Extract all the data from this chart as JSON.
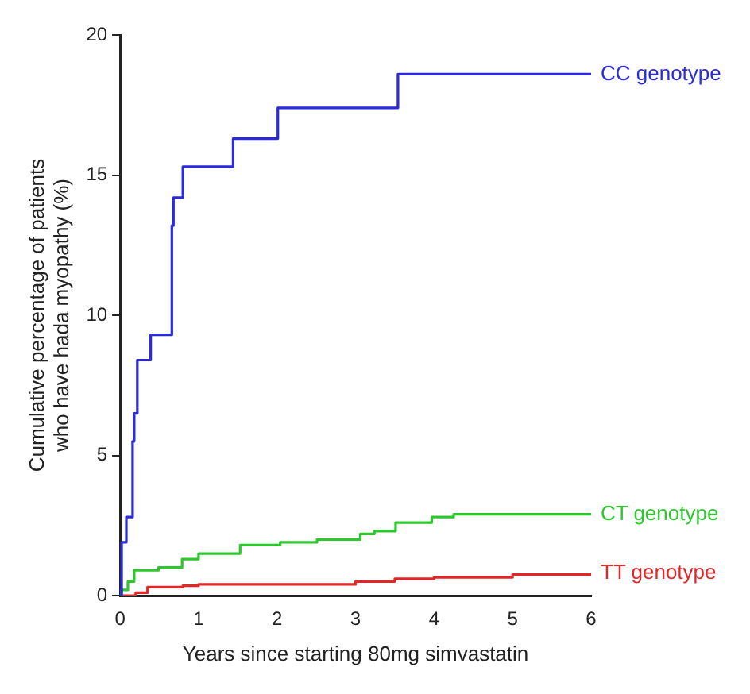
{
  "chart_data": {
    "type": "step",
    "xlabel": "Years since starting 80mg simvastatin",
    "ylabel": "Cumulative percentage of patients who have hada myopathy (%)",
    "xlim": [
      0,
      6
    ],
    "xticks": [
      0,
      1,
      2,
      3,
      4,
      5,
      6
    ],
    "ylim": [
      0,
      20
    ],
    "yticks": [
      0,
      5,
      10,
      15,
      20
    ],
    "grid": false,
    "legend": false,
    "series": [
      {
        "name": "CC genotype",
        "color": "#2b2bdc",
        "x": [
          0,
          0.02,
          0.08,
          0.16,
          0.18,
          0.22,
          0.39,
          0.66,
          0.66,
          0.68,
          0.8,
          1.44,
          2.01,
          3.54,
          6
        ],
        "values": [
          0,
          1.9,
          2.8,
          5.5,
          6.5,
          8.4,
          9.3,
          10.5,
          13.2,
          14.2,
          15.3,
          16.3,
          17.4,
          18.6,
          18.6
        ]
      },
      {
        "name": "CT genotype",
        "color": "#2ec82e",
        "x": [
          0,
          0.02,
          0.1,
          0.18,
          0.49,
          0.79,
          1.0,
          1.53,
          2.04,
          2.51,
          3.06,
          3.24,
          3.51,
          3.97,
          4.25,
          6
        ],
        "values": [
          0,
          0.2,
          0.5,
          0.9,
          1.0,
          1.3,
          1.5,
          1.8,
          1.9,
          2.0,
          2.2,
          2.3,
          2.6,
          2.8,
          2.9,
          2.9
        ]
      },
      {
        "name": "TT genotype",
        "color": "#e02828",
        "x": [
          0,
          0.2,
          0.35,
          0.8,
          1.0,
          3.0,
          3.5,
          4.0,
          5.0,
          6
        ],
        "values": [
          0,
          0.1,
          0.3,
          0.35,
          0.4,
          0.5,
          0.6,
          0.65,
          0.75,
          0.8
        ]
      }
    ]
  }
}
